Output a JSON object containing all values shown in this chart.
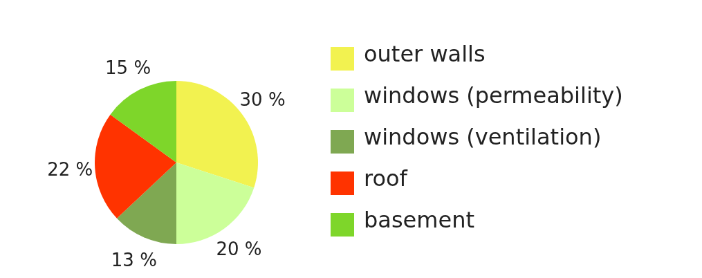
{
  "chart_data": {
    "type": "pie",
    "categories": [
      "outer walls",
      "windows (permeability)",
      "windows (ventilation)",
      "roof",
      "basement"
    ],
    "values": [
      30,
      20,
      13,
      22,
      15
    ],
    "colors": [
      "#f2f250",
      "#ccff99",
      "#7fa852",
      "#ff3300",
      "#7ed62a"
    ],
    "value_labels": [
      "30 %",
      "20 %",
      "13 %",
      "22 %",
      "15 %"
    ],
    "legend": "right"
  }
}
